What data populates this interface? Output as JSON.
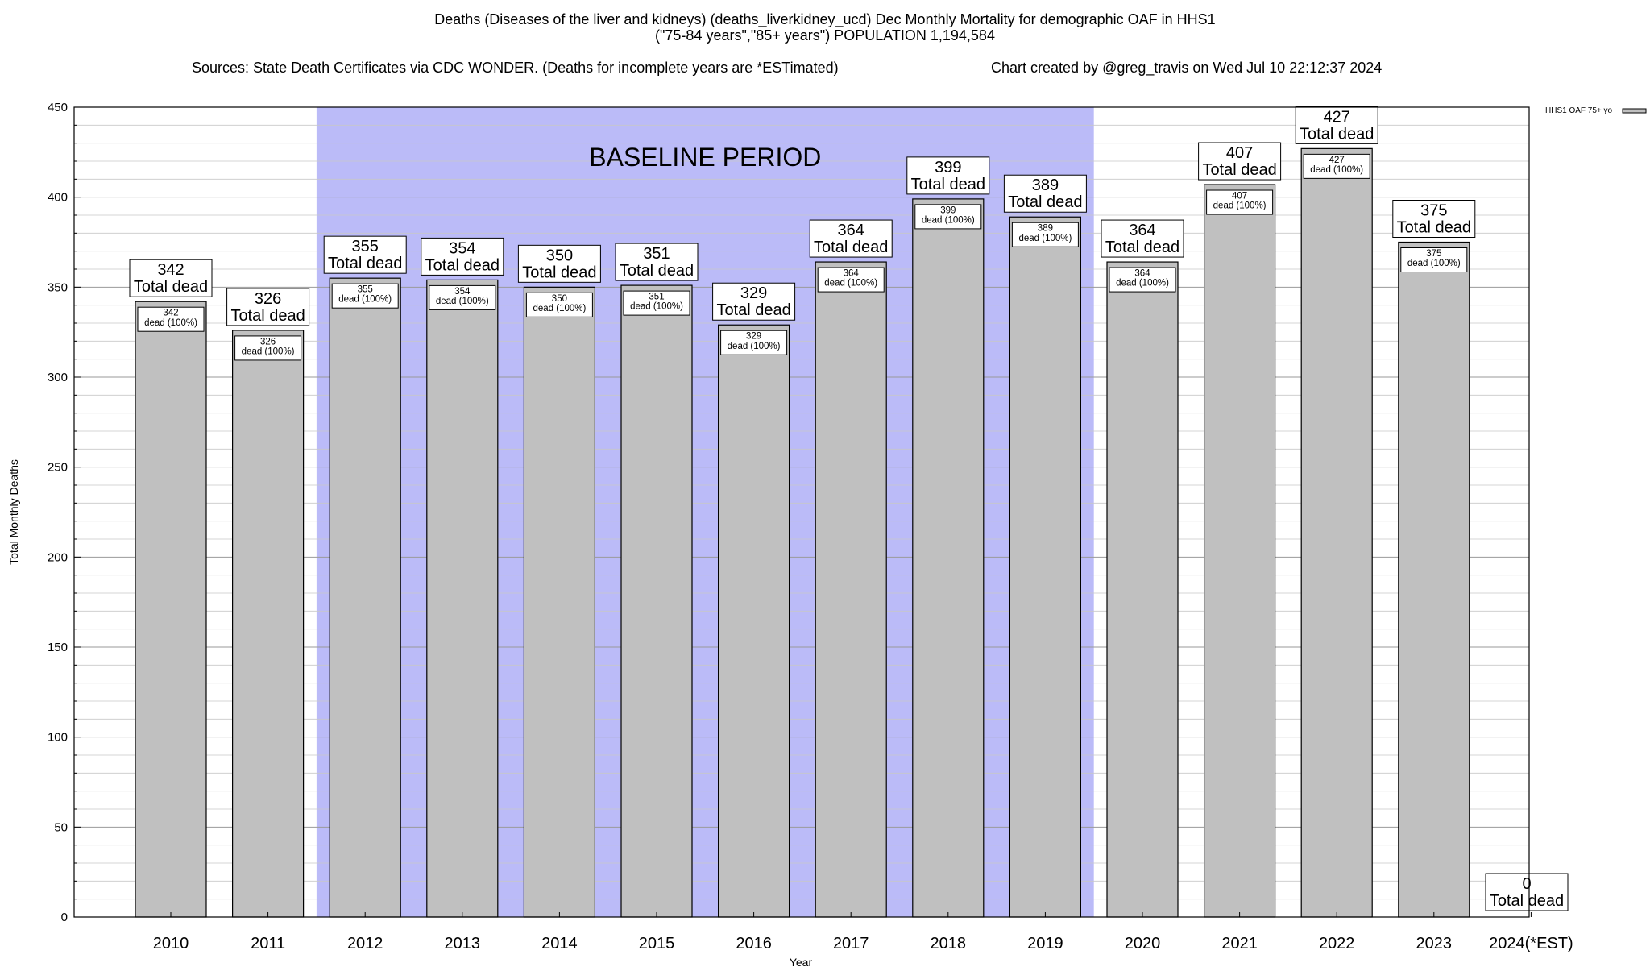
{
  "header": {
    "line1": "Deaths (Diseases of the liver and kidneys) (deaths_liverkidney_ucd) Dec Monthly Mortality for demographic OAF in HHS1",
    "line2": "(\"75-84 years\",\"85+ years\") POPULATION 1,194,584",
    "line3_left": "Sources: State Death Certificates via CDC WONDER. (Deaths for incomplete years are *ESTimated)",
    "line3_right": "Chart created by @greg_travis on Wed Jul 10 22:12:37 2024"
  },
  "chart_data": {
    "type": "bar",
    "title": "Deaths (Diseases of the liver and kidneys) (deaths_liverkidney_ucd) Dec Monthly Mortality for demographic OAF in HHS1",
    "xlabel": "Year",
    "ylabel": "Total Monthly Deaths",
    "ylim": [
      0,
      450
    ],
    "yticks": [
      0,
      50,
      100,
      150,
      200,
      250,
      300,
      350,
      400,
      450
    ],
    "categories": [
      "2010",
      "2011",
      "2012",
      "2013",
      "2014",
      "2015",
      "2016",
      "2017",
      "2018",
      "2019",
      "2020",
      "2021",
      "2022",
      "2023",
      "2024(*EST)"
    ],
    "series": [
      {
        "name": "HHS1 OAF 75+ yo",
        "color": "#c0c0c0",
        "values": [
          342,
          326,
          355,
          354,
          350,
          351,
          329,
          364,
          399,
          389,
          364,
          407,
          427,
          375,
          0
        ]
      }
    ],
    "top_label_suffix": "Total dead",
    "inner_label_suffix": "dead (100%)",
    "baseline_period": {
      "label": "BASELINE PERIOD",
      "start": "2012",
      "end": "2019",
      "color": "#bbbbf8"
    },
    "grid": true,
    "legend_position": "top-right"
  }
}
